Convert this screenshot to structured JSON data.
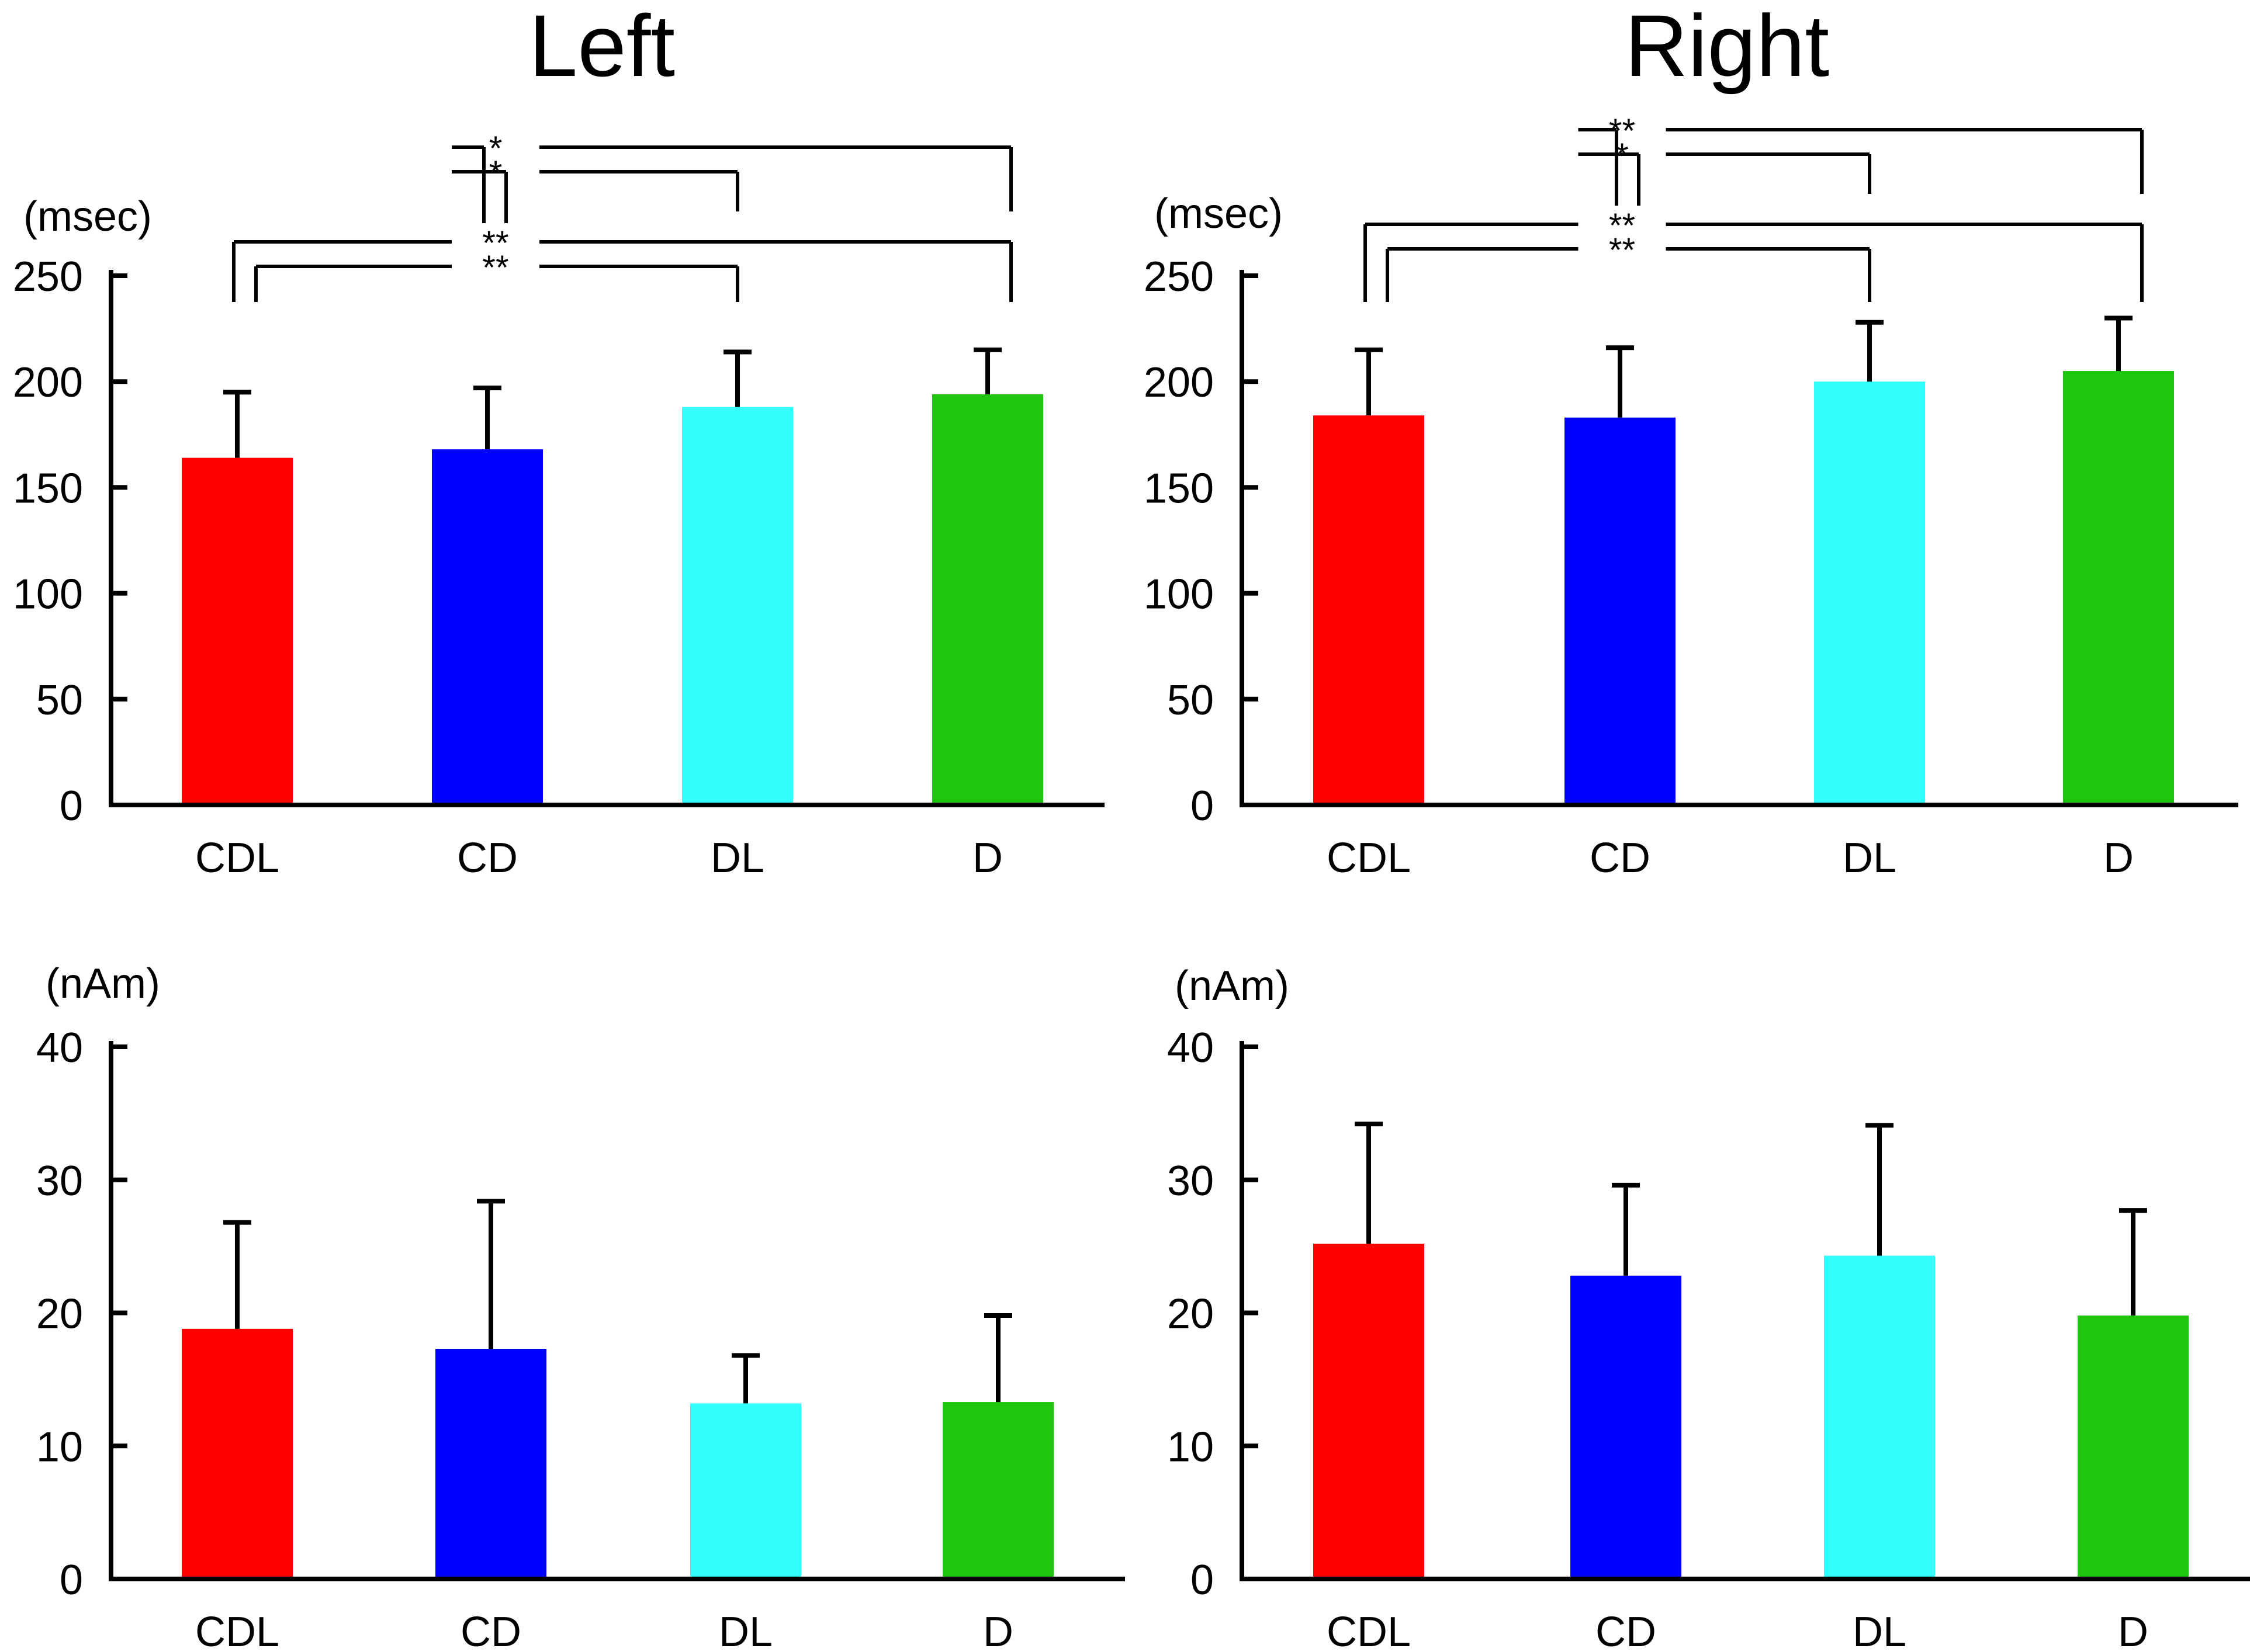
{
  "titles": {
    "left": "Left",
    "right": "Right"
  },
  "colors": {
    "CDL": "#ff0000",
    "CD": "#0000ff",
    "DL": "#33ffff",
    "D": "#1ec60d"
  },
  "chart_data": [
    {
      "id": "left-latency",
      "type": "bar",
      "title": "Left",
      "ylabel": "(msec)",
      "ylim": [
        0,
        250
      ],
      "yticks": [
        0,
        50,
        100,
        150,
        200,
        250
      ],
      "categories": [
        "CDL",
        "CD",
        "DL",
        "D"
      ],
      "values": [
        164,
        168,
        188,
        194
      ],
      "errors": [
        31,
        29,
        26,
        21
      ],
      "significance": [
        {
          "from": "CD",
          "to": "D",
          "label": "*"
        },
        {
          "from": "CD",
          "to": "DL",
          "label": "*"
        },
        {
          "from": "CDL",
          "to": "D",
          "label": "**"
        },
        {
          "from": "CDL",
          "to": "DL",
          "label": "**"
        }
      ]
    },
    {
      "id": "right-latency",
      "type": "bar",
      "title": "Right",
      "ylabel": "(msec)",
      "ylim": [
        0,
        250
      ],
      "yticks": [
        0,
        50,
        100,
        150,
        200,
        250
      ],
      "categories": [
        "CDL",
        "CD",
        "DL",
        "D"
      ],
      "values": [
        184,
        183,
        200,
        205
      ],
      "errors": [
        31,
        33,
        28,
        25
      ],
      "significance": [
        {
          "from": "CD",
          "to": "D",
          "label": "**"
        },
        {
          "from": "CD",
          "to": "DL",
          "label": "*"
        },
        {
          "from": "CDL",
          "to": "D",
          "label": "**"
        },
        {
          "from": "CDL",
          "to": "DL",
          "label": "**"
        }
      ]
    },
    {
      "id": "left-amplitude",
      "type": "bar",
      "ylabel": "(nAm)",
      "ylim": [
        0,
        40
      ],
      "yticks": [
        0,
        10,
        20,
        30,
        40
      ],
      "categories": [
        "CDL",
        "CD",
        "DL",
        "D"
      ],
      "values": [
        18.8,
        17.3,
        13.2,
        13.3
      ],
      "errors": [
        8.0,
        11.1,
        3.6,
        6.5
      ]
    },
    {
      "id": "right-amplitude",
      "type": "bar",
      "ylabel": "(nAm)",
      "ylim": [
        0,
        40
      ],
      "yticks": [
        0,
        10,
        20,
        30,
        40
      ],
      "categories": [
        "CDL",
        "CD",
        "DL",
        "D"
      ],
      "values": [
        25.2,
        22.8,
        24.3,
        19.8
      ],
      "errors": [
        9.0,
        6.8,
        9.8,
        7.9
      ]
    }
  ]
}
